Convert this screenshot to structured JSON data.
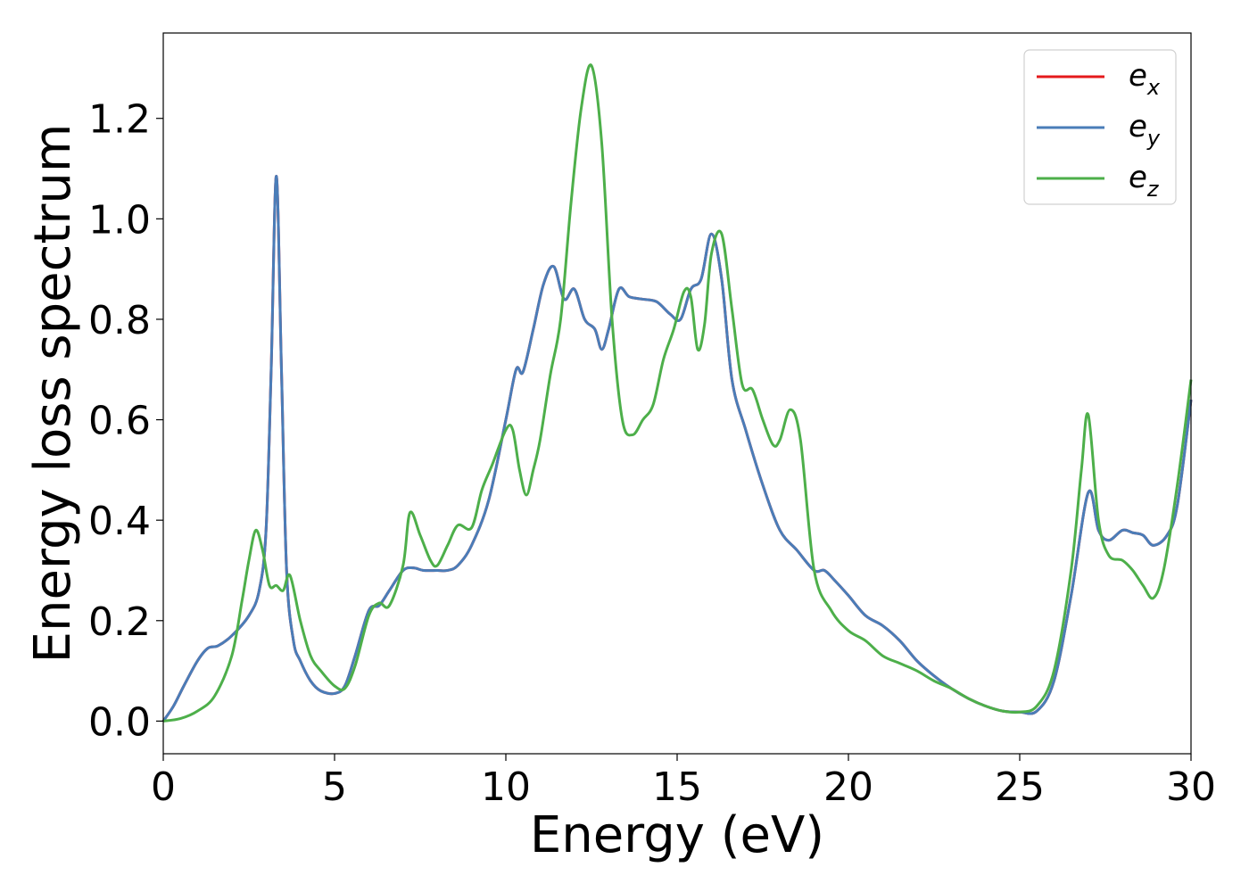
{
  "chart_data": {
    "type": "line",
    "xlabel": "Energy (eV)",
    "ylabel": "Energy loss spectrum",
    "xlim": [
      0,
      30
    ],
    "ylim": [
      -0.065,
      1.37
    ],
    "xticks": [
      0,
      5,
      10,
      15,
      20,
      25,
      30
    ],
    "xtick_labels": [
      "0",
      "5",
      "10",
      "15",
      "20",
      "25",
      "30"
    ],
    "yticks": [
      0.0,
      0.2,
      0.4,
      0.6,
      0.8,
      1.0,
      1.2
    ],
    "ytick_labels": [
      "0.0",
      "0.2",
      "0.4",
      "0.6",
      "0.8",
      "1.0",
      "1.2"
    ],
    "grid": false,
    "legend_position": "top-right",
    "series": [
      {
        "name": "e_x",
        "label_base": "e",
        "label_sub": "x",
        "color": "#e41a1c",
        "x": [
          0,
          0.3,
          0.6,
          1.0,
          1.3,
          1.6,
          2.0,
          2.5,
          2.8,
          3.0,
          3.15,
          3.3,
          3.45,
          3.6,
          3.8,
          4.0,
          4.3,
          4.6,
          5.0,
          5.3,
          5.6,
          6.0,
          6.3,
          6.6,
          7.0,
          7.3,
          7.6,
          8.0,
          8.3,
          8.6,
          9.0,
          9.5,
          10.0,
          10.3,
          10.5,
          10.8,
          11.1,
          11.4,
          11.7,
          12.0,
          12.3,
          12.6,
          12.8,
          13.0,
          13.3,
          13.6,
          14.0,
          14.4,
          14.8,
          15.1,
          15.4,
          15.7,
          16.0,
          16.3,
          16.6,
          17.0,
          17.5,
          18.0,
          18.5,
          19.0,
          19.3,
          19.6,
          20.0,
          20.5,
          21.0,
          21.5,
          22.0,
          22.5,
          23.0,
          23.5,
          24.0,
          24.5,
          25.0,
          25.5,
          26.0,
          26.5,
          27.0,
          27.3,
          27.6,
          28.0,
          28.3,
          28.6,
          28.9,
          29.3,
          29.6,
          30.0
        ],
        "y": [
          0.0,
          0.03,
          0.07,
          0.12,
          0.145,
          0.15,
          0.17,
          0.21,
          0.26,
          0.38,
          0.7,
          1.085,
          0.7,
          0.3,
          0.16,
          0.12,
          0.08,
          0.06,
          0.055,
          0.07,
          0.13,
          0.22,
          0.23,
          0.26,
          0.3,
          0.305,
          0.3,
          0.3,
          0.3,
          0.31,
          0.35,
          0.44,
          0.6,
          0.7,
          0.695,
          0.78,
          0.87,
          0.905,
          0.84,
          0.86,
          0.8,
          0.78,
          0.74,
          0.78,
          0.86,
          0.845,
          0.84,
          0.835,
          0.81,
          0.8,
          0.86,
          0.88,
          0.97,
          0.88,
          0.68,
          0.58,
          0.47,
          0.38,
          0.34,
          0.3,
          0.3,
          0.28,
          0.25,
          0.21,
          0.19,
          0.16,
          0.12,
          0.09,
          0.065,
          0.045,
          0.03,
          0.02,
          0.018,
          0.02,
          0.08,
          0.25,
          0.455,
          0.38,
          0.36,
          0.38,
          0.375,
          0.37,
          0.35,
          0.37,
          0.43,
          0.64
        ]
      },
      {
        "name": "e_y",
        "label_base": "e",
        "label_sub": "y",
        "color": "#4a7db8",
        "x": [
          0,
          0.3,
          0.6,
          1.0,
          1.3,
          1.6,
          2.0,
          2.5,
          2.8,
          3.0,
          3.15,
          3.3,
          3.45,
          3.6,
          3.8,
          4.0,
          4.3,
          4.6,
          5.0,
          5.3,
          5.6,
          6.0,
          6.3,
          6.6,
          7.0,
          7.3,
          7.6,
          8.0,
          8.3,
          8.6,
          9.0,
          9.5,
          10.0,
          10.3,
          10.5,
          10.8,
          11.1,
          11.4,
          11.7,
          12.0,
          12.3,
          12.6,
          12.8,
          13.0,
          13.3,
          13.6,
          14.0,
          14.4,
          14.8,
          15.1,
          15.4,
          15.7,
          16.0,
          16.3,
          16.6,
          17.0,
          17.5,
          18.0,
          18.5,
          19.0,
          19.3,
          19.6,
          20.0,
          20.5,
          21.0,
          21.5,
          22.0,
          22.5,
          23.0,
          23.5,
          24.0,
          24.5,
          25.0,
          25.5,
          26.0,
          26.5,
          27.0,
          27.3,
          27.6,
          28.0,
          28.3,
          28.6,
          28.9,
          29.3,
          29.6,
          30.0
        ],
        "y": [
          0.0,
          0.03,
          0.07,
          0.12,
          0.145,
          0.15,
          0.17,
          0.21,
          0.26,
          0.38,
          0.7,
          1.085,
          0.7,
          0.3,
          0.16,
          0.12,
          0.08,
          0.06,
          0.055,
          0.07,
          0.13,
          0.22,
          0.23,
          0.26,
          0.3,
          0.305,
          0.3,
          0.3,
          0.3,
          0.31,
          0.35,
          0.44,
          0.6,
          0.7,
          0.695,
          0.78,
          0.87,
          0.905,
          0.84,
          0.86,
          0.8,
          0.78,
          0.74,
          0.78,
          0.86,
          0.845,
          0.84,
          0.835,
          0.81,
          0.8,
          0.86,
          0.88,
          0.97,
          0.88,
          0.68,
          0.58,
          0.47,
          0.38,
          0.34,
          0.3,
          0.3,
          0.28,
          0.25,
          0.21,
          0.19,
          0.16,
          0.12,
          0.09,
          0.065,
          0.045,
          0.03,
          0.02,
          0.018,
          0.02,
          0.08,
          0.25,
          0.455,
          0.38,
          0.36,
          0.38,
          0.375,
          0.37,
          0.35,
          0.37,
          0.43,
          0.64
        ]
      },
      {
        "name": "e_z",
        "label_base": "e",
        "label_sub": "z",
        "color": "#4daf4a",
        "x": [
          0,
          0.5,
          1.0,
          1.5,
          2.0,
          2.3,
          2.5,
          2.7,
          2.9,
          3.1,
          3.3,
          3.5,
          3.7,
          4.0,
          4.3,
          4.6,
          5.0,
          5.3,
          5.6,
          6.0,
          6.3,
          6.6,
          7.0,
          7.2,
          7.5,
          7.8,
          8.0,
          8.3,
          8.6,
          9.0,
          9.3,
          9.6,
          10.0,
          10.2,
          10.4,
          10.6,
          10.8,
          11.0,
          11.3,
          11.6,
          11.9,
          12.2,
          12.5,
          12.8,
          13.1,
          13.4,
          13.7,
          14.0,
          14.3,
          14.6,
          14.9,
          15.2,
          15.4,
          15.6,
          15.8,
          16.0,
          16.3,
          16.6,
          16.9,
          17.2,
          17.5,
          17.8,
          18.0,
          18.3,
          18.6,
          19.0,
          19.5,
          20.0,
          20.5,
          21.0,
          21.5,
          22.0,
          22.5,
          23.0,
          23.5,
          24.0,
          24.5,
          25.0,
          25.5,
          26.0,
          26.5,
          26.8,
          27.0,
          27.3,
          27.6,
          28.0,
          28.3,
          28.6,
          28.9,
          29.2,
          29.6,
          30.0
        ],
        "y": [
          0.0,
          0.005,
          0.02,
          0.05,
          0.13,
          0.24,
          0.32,
          0.38,
          0.34,
          0.27,
          0.27,
          0.26,
          0.29,
          0.2,
          0.13,
          0.1,
          0.07,
          0.065,
          0.11,
          0.21,
          0.235,
          0.23,
          0.31,
          0.415,
          0.37,
          0.32,
          0.31,
          0.35,
          0.39,
          0.385,
          0.46,
          0.51,
          0.58,
          0.58,
          0.5,
          0.45,
          0.5,
          0.56,
          0.69,
          0.8,
          1.03,
          1.22,
          1.305,
          1.15,
          0.8,
          0.6,
          0.57,
          0.6,
          0.63,
          0.72,
          0.78,
          0.855,
          0.845,
          0.74,
          0.79,
          0.93,
          0.97,
          0.82,
          0.67,
          0.66,
          0.6,
          0.55,
          0.56,
          0.62,
          0.56,
          0.3,
          0.22,
          0.18,
          0.16,
          0.13,
          0.115,
          0.1,
          0.08,
          0.065,
          0.045,
          0.03,
          0.02,
          0.018,
          0.03,
          0.1,
          0.3,
          0.5,
          0.61,
          0.4,
          0.33,
          0.32,
          0.3,
          0.27,
          0.245,
          0.3,
          0.47,
          0.68
        ]
      }
    ]
  }
}
